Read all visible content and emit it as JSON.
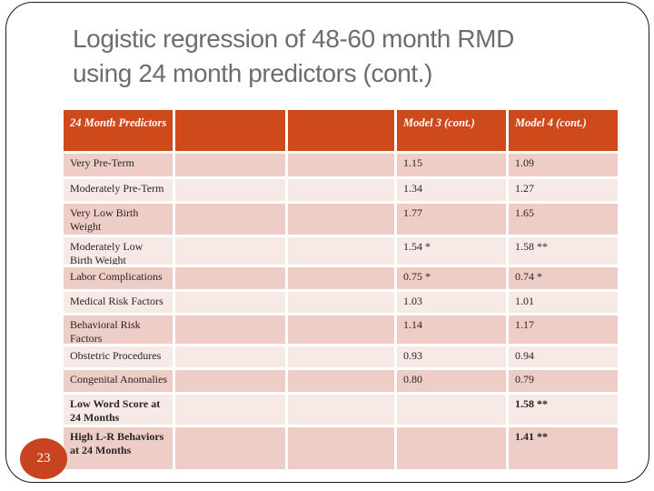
{
  "slide": {
    "title_line1": "Logistic regression of 48-60 month RMD",
    "title_line2": "using 24 month predictors (cont.)",
    "page_number": "23"
  },
  "colors": {
    "accent": "#CE4A1B",
    "badge": "#C8431F",
    "row_dark": "#EECDC6",
    "row_light": "#F7E9E5",
    "title_text": "#6D6D6D",
    "header_text": "#FFFFFF",
    "table_text": "#262626"
  },
  "table": {
    "header": [
      "24 Month Predictors",
      "",
      "",
      "Model 3 (cont.)",
      "Model 4 (cont.)"
    ],
    "rows": [
      {
        "label": "Very Pre-Term",
        "model3": "1.15",
        "model4": "1.09"
      },
      {
        "label": "Moderately Pre-Term",
        "model3": "1.34",
        "model4": "1.27"
      },
      {
        "label": "Very Low Birth Weight",
        "model3": "1.77",
        "model4": "1.65"
      },
      {
        "label": "Moderately Low Birth Weight",
        "model3": "1.54 *",
        "model4": "1.58 **"
      },
      {
        "label": "Labor Complications",
        "model3": "0.75 *",
        "model4": "0.74 *"
      },
      {
        "label": "Medical Risk Factors",
        "model3": "1.03",
        "model4": "1.01"
      },
      {
        "label": "Behavioral Risk Factors",
        "model3": "1.14",
        "model4": "1.17"
      },
      {
        "label": "Obstetric Procedures",
        "model3": "0.93",
        "model4": "0.94"
      },
      {
        "label": "Congenital Anomalies",
        "model3": "0.80",
        "model4": "0.79"
      },
      {
        "label": "Low Word Score at 24 Months",
        "model3": "",
        "model4": "1.58 **"
      },
      {
        "label": "High L-R Behaviors at 24 Months",
        "model3": "",
        "model4": "1.41 **"
      }
    ]
  }
}
